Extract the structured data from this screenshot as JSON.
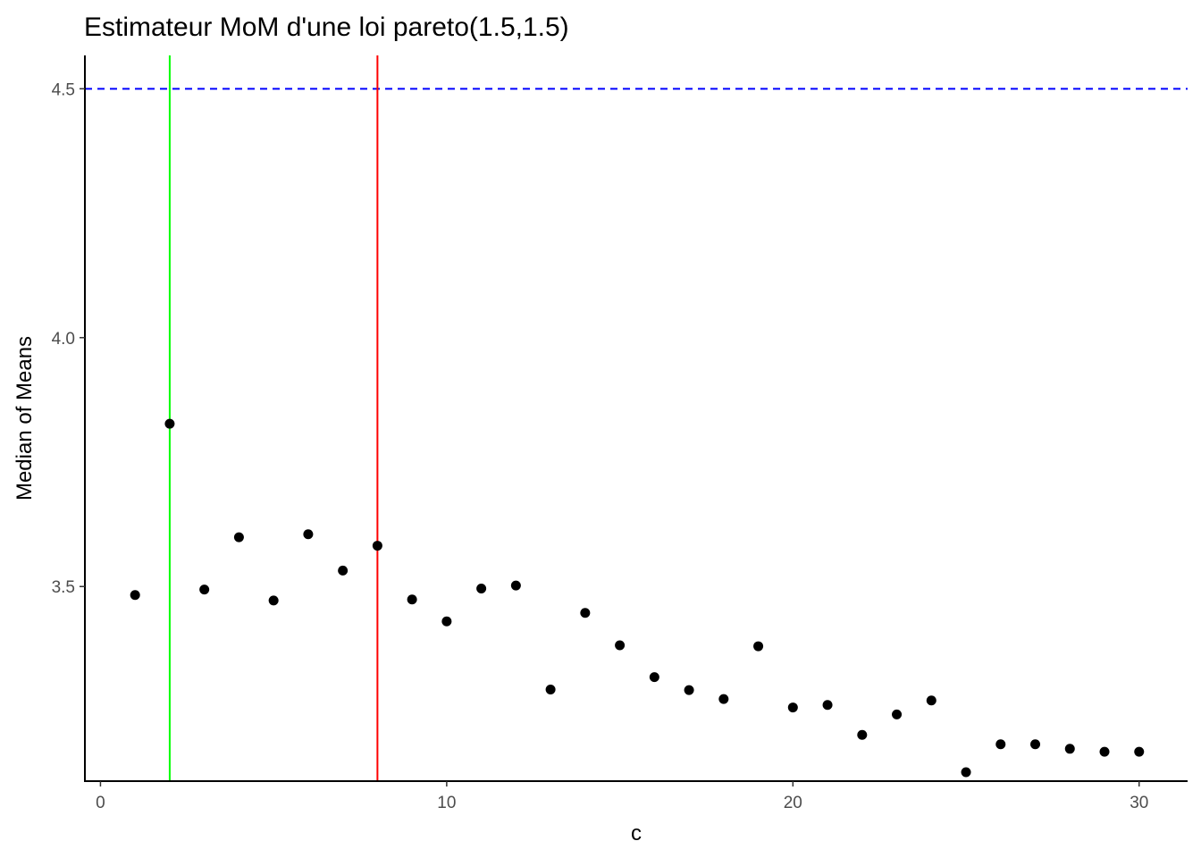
{
  "chart_data": {
    "type": "scatter",
    "title": "Estimateur MoM d'une loi pareto(1.5,1.5)",
    "xlabel": "c",
    "ylabel": "Median of Means",
    "xlim": [
      -0.45,
      31.4
    ],
    "ylim": [
      3.109,
      4.567
    ],
    "xticks": [
      0,
      10,
      20,
      30
    ],
    "xtick_labels": [
      "0",
      "10",
      "20",
      "30"
    ],
    "yticks": [
      3.5,
      4.0,
      4.5
    ],
    "ytick_labels": [
      "3.5",
      "4.0",
      "4.5"
    ],
    "grid": false,
    "series": [
      {
        "x": [
          1,
          2,
          3,
          4,
          5,
          6,
          7,
          8,
          9,
          10,
          11,
          12,
          13,
          14,
          15,
          16,
          17,
          18,
          19,
          20,
          21,
          22,
          23,
          24,
          25,
          26,
          27,
          28,
          29,
          30
        ],
        "y": [
          3.483,
          3.827,
          3.494,
          3.599,
          3.472,
          3.605,
          3.532,
          3.582,
          3.474,
          3.43,
          3.496,
          3.502,
          3.293,
          3.447,
          3.382,
          3.318,
          3.292,
          3.274,
          3.38,
          3.257,
          3.262,
          3.202,
          3.243,
          3.271,
          3.127,
          3.183,
          3.183,
          3.174,
          3.168,
          3.168
        ],
        "color": "#000000"
      }
    ],
    "reference_lines": [
      {
        "orientation": "horizontal",
        "value": 4.5,
        "color": "#0000ff",
        "style": "dashed"
      },
      {
        "orientation": "vertical",
        "value": 2,
        "color": "#00ff00",
        "style": "solid"
      },
      {
        "orientation": "vertical",
        "value": 8,
        "color": "#ff0000",
        "style": "solid"
      }
    ]
  }
}
